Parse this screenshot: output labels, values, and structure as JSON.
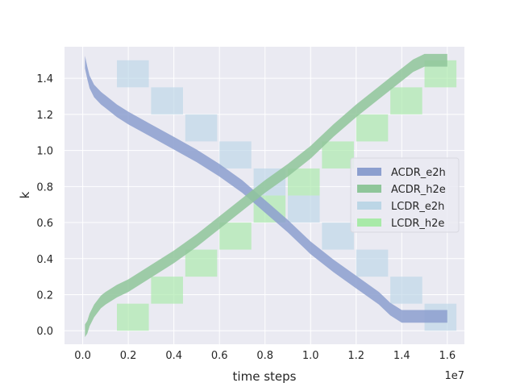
{
  "chart_data": {
    "type": "area",
    "xlabel": "time steps",
    "ylabel": "k",
    "x_scale_label": "1e7",
    "xlim": [
      -0.08,
      1.675
    ],
    "ylim": [
      -0.075,
      1.575
    ],
    "x_ticks": [
      0.0,
      0.2,
      0.4,
      0.6,
      0.8,
      1.0,
      1.2,
      1.4,
      1.6
    ],
    "x_tick_labels": [
      "0.0",
      "0.2",
      "0.4",
      "0.6",
      "0.8",
      "1.0",
      "1.2",
      "1.4",
      "1.6"
    ],
    "y_ticks": [
      0.0,
      0.2,
      0.4,
      0.6,
      0.8,
      1.0,
      1.2,
      1.4
    ],
    "y_tick_labels": [
      "0.0",
      "0.2",
      "0.4",
      "0.6",
      "0.8",
      "1.0",
      "1.2",
      "1.4"
    ],
    "grid": true,
    "legend_position": "center-right",
    "colors": {
      "background": "#eaeaf2",
      "grid": "#ffffff",
      "acdr_e2h": "#8c9fcf",
      "acdr_h2e": "#8fc69a",
      "lcdr_e2h": "#bcd6e6",
      "lcdr_h2e": "#a8eaa8"
    },
    "series": [
      {
        "name": "ACDR_e2h",
        "kind": "band",
        "x": [
          0.01,
          0.02,
          0.03,
          0.05,
          0.08,
          0.1,
          0.15,
          0.2,
          0.3,
          0.4,
          0.5,
          0.6,
          0.7,
          0.8,
          0.9,
          1.0,
          1.1,
          1.2,
          1.3,
          1.35,
          1.4,
          1.45,
          1.5,
          1.55,
          1.6
        ],
        "y": [
          1.49,
          1.43,
          1.38,
          1.33,
          1.29,
          1.27,
          1.22,
          1.18,
          1.11,
          1.04,
          0.97,
          0.89,
          0.8,
          0.69,
          0.58,
          0.46,
          0.36,
          0.27,
          0.18,
          0.12,
          0.08,
          0.08,
          0.08,
          0.08,
          0.08
        ],
        "width": 0.07
      },
      {
        "name": "ACDR_h2e",
        "kind": "band",
        "x": [
          0.01,
          0.02,
          0.03,
          0.05,
          0.08,
          0.1,
          0.15,
          0.2,
          0.3,
          0.4,
          0.5,
          0.6,
          0.7,
          0.8,
          0.9,
          1.0,
          1.1,
          1.2,
          1.3,
          1.35,
          1.4,
          1.45,
          1.5,
          1.55,
          1.6
        ],
        "y": [
          0.0,
          0.02,
          0.06,
          0.11,
          0.16,
          0.18,
          0.22,
          0.25,
          0.33,
          0.41,
          0.5,
          0.6,
          0.7,
          0.8,
          0.89,
          0.99,
          1.11,
          1.22,
          1.32,
          1.37,
          1.42,
          1.47,
          1.5,
          1.5,
          1.5
        ],
        "width": 0.07
      },
      {
        "name": "LCDR_e2h",
        "kind": "steps",
        "x0": [
          0.15,
          0.3,
          0.45,
          0.6,
          0.75,
          0.9,
          1.05,
          1.2,
          1.35,
          1.5
        ],
        "x1": [
          0.29,
          0.44,
          0.59,
          0.74,
          0.89,
          1.04,
          1.19,
          1.34,
          1.49,
          1.64
        ],
        "y0": [
          1.35,
          1.2,
          1.05,
          0.9,
          0.75,
          0.6,
          0.45,
          0.3,
          0.15,
          0.0
        ],
        "y1": [
          1.5,
          1.35,
          1.2,
          1.05,
          0.9,
          0.75,
          0.6,
          0.45,
          0.3,
          0.15
        ]
      },
      {
        "name": "LCDR_h2e",
        "kind": "steps",
        "x0": [
          0.15,
          0.3,
          0.45,
          0.6,
          0.75,
          0.9,
          1.05,
          1.2,
          1.35,
          1.5
        ],
        "x1": [
          0.29,
          0.44,
          0.59,
          0.74,
          0.89,
          1.04,
          1.19,
          1.34,
          1.49,
          1.64
        ],
        "y0": [
          0.0,
          0.15,
          0.3,
          0.45,
          0.6,
          0.75,
          0.9,
          1.05,
          1.2,
          1.35
        ],
        "y1": [
          0.15,
          0.3,
          0.45,
          0.6,
          0.75,
          0.9,
          1.05,
          1.2,
          1.35,
          1.5
        ]
      }
    ]
  }
}
